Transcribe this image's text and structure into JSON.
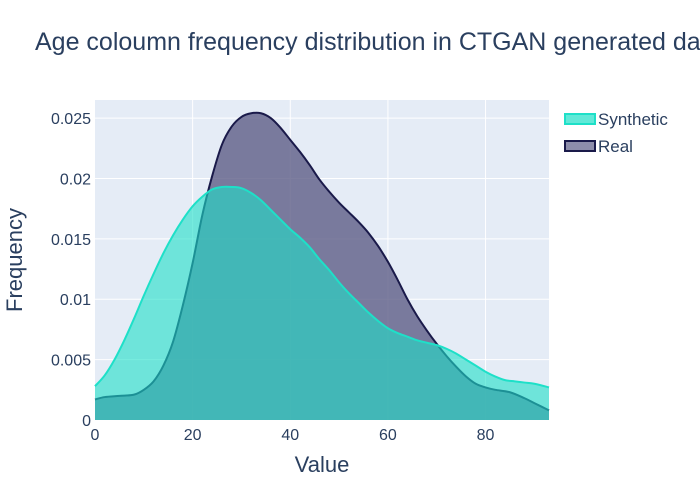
{
  "chart_data": {
    "type": "area",
    "title": "Age coloumn frequency distribution in CTGAN generated data",
    "xlabel": "Value",
    "ylabel": "Frequency",
    "xlim": [
      0,
      93
    ],
    "ylim": [
      0,
      0.0265
    ],
    "x_ticks": [
      {
        "value": 0,
        "label": "0"
      },
      {
        "value": 20,
        "label": "20"
      },
      {
        "value": 40,
        "label": "40"
      },
      {
        "value": 60,
        "label": "60"
      },
      {
        "value": 80,
        "label": "80"
      }
    ],
    "y_ticks": [
      {
        "value": 0,
        "label": "0"
      },
      {
        "value": 0.005,
        "label": "0.005"
      },
      {
        "value": 0.01,
        "label": "0.01"
      },
      {
        "value": 0.015,
        "label": "0.015"
      },
      {
        "value": 0.02,
        "label": "0.02"
      },
      {
        "value": 0.025,
        "label": "0.025"
      }
    ],
    "grid": true,
    "legend_position": "top-right",
    "series": [
      {
        "name": "Real",
        "line_color": "#1a1a4a",
        "fill_color": "#5e5e87",
        "fill_opacity": 0.8,
        "x": [
          0,
          2,
          5,
          8,
          10,
          12,
          14,
          16,
          18,
          20,
          22,
          24,
          26,
          28,
          30,
          32,
          34,
          36,
          38,
          40,
          42,
          44,
          46,
          48,
          50,
          52,
          54,
          56,
          58,
          60,
          62,
          64,
          66,
          68,
          70,
          72,
          74,
          76,
          78,
          80,
          82,
          85,
          88,
          90,
          93
        ],
        "y": [
          0.0017,
          0.0019,
          0.002,
          0.0021,
          0.0025,
          0.0032,
          0.0045,
          0.0065,
          0.0095,
          0.013,
          0.017,
          0.0202,
          0.0228,
          0.0243,
          0.0251,
          0.0254,
          0.0254,
          0.025,
          0.0242,
          0.0232,
          0.0222,
          0.0211,
          0.0199,
          0.0189,
          0.018,
          0.0172,
          0.0164,
          0.0155,
          0.0144,
          0.0131,
          0.0116,
          0.01,
          0.0086,
          0.0074,
          0.0063,
          0.0053,
          0.0044,
          0.0036,
          0.003,
          0.0027,
          0.0025,
          0.0023,
          0.0018,
          0.0014,
          0.0008
        ]
      },
      {
        "name": "Synthetic",
        "line_color": "#1ee0c8",
        "fill_color": "#1ee0c8",
        "fill_opacity": 0.6,
        "x": [
          0,
          2,
          4,
          6,
          8,
          10,
          12,
          14,
          16,
          18,
          20,
          22,
          24,
          26,
          28,
          30,
          32,
          34,
          36,
          38,
          40,
          42,
          44,
          46,
          48,
          50,
          52,
          54,
          56,
          58,
          60,
          62,
          64,
          66,
          68,
          70,
          72,
          74,
          76,
          78,
          80,
          82,
          84,
          86,
          88,
          90,
          93
        ],
        "y": [
          0.0028,
          0.0037,
          0.005,
          0.0066,
          0.0084,
          0.0103,
          0.0121,
          0.0138,
          0.0153,
          0.0166,
          0.0177,
          0.0185,
          0.0191,
          0.0193,
          0.0193,
          0.0192,
          0.0188,
          0.0182,
          0.0174,
          0.0166,
          0.0158,
          0.0151,
          0.0143,
          0.0133,
          0.0124,
          0.0114,
          0.0105,
          0.0097,
          0.0089,
          0.0082,
          0.0076,
          0.0072,
          0.0069,
          0.0066,
          0.0064,
          0.0062,
          0.0059,
          0.0055,
          0.005,
          0.0045,
          0.004,
          0.0036,
          0.0033,
          0.0032,
          0.0031,
          0.003,
          0.0027
        ]
      }
    ],
    "legend": [
      {
        "name": "Synthetic",
        "line_color": "#1ee0c8",
        "fill_color": "#1ee0c8"
      },
      {
        "name": "Real",
        "line_color": "#1a1a4a",
        "fill_color": "#5e5e87"
      }
    ]
  }
}
